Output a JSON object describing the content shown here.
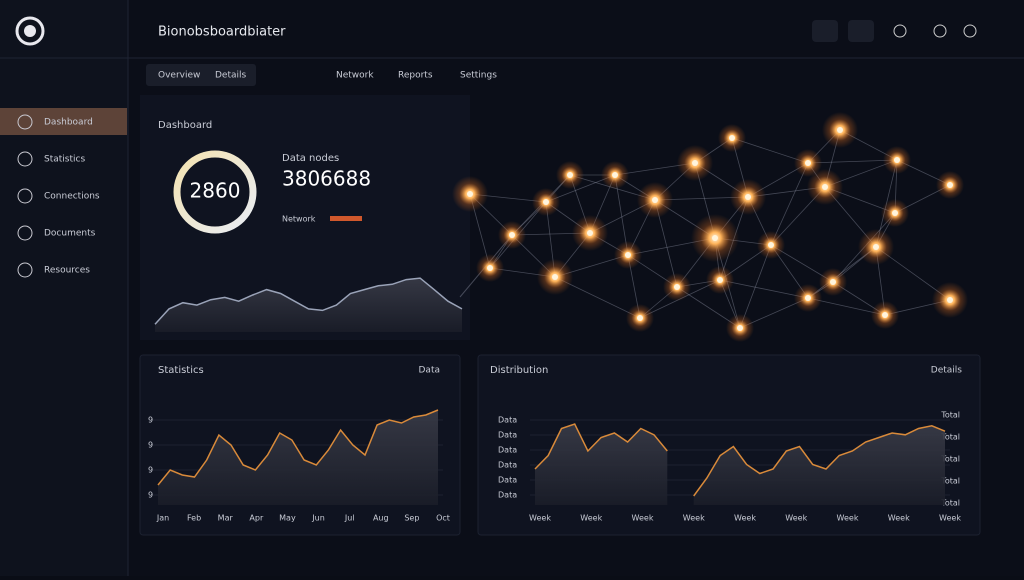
{
  "header": {
    "title": "Bionobsboardbiater"
  },
  "tabs": [
    "Overview",
    "Details",
    "Network",
    "Reports",
    "Settings"
  ],
  "sidebar": [
    "Dashboard",
    "Statistics",
    "Connections",
    "Documents",
    "Resources"
  ],
  "summary": {
    "title": "Dashboard",
    "ring_value": "2860",
    "big_label": "Data nodes",
    "big_number": "3806688",
    "sub_label": "Network",
    "trend": [
      10,
      30,
      38,
      35,
      42,
      45,
      40,
      48,
      55,
      50,
      40,
      30,
      28,
      35,
      50,
      55,
      60,
      62,
      68,
      70,
      55,
      40,
      30
    ]
  },
  "panels": [
    {
      "title": "Statistics",
      "action": "Data",
      "y_labels": [
        "9",
        "9",
        "9",
        "9"
      ],
      "x_labels": [
        "Jan",
        "Feb",
        "Mar",
        "Apr",
        "May",
        "Jun",
        "Jul",
        "Aug",
        "Sep",
        "Oct"
      ],
      "values": [
        20,
        35,
        30,
        28,
        45,
        70,
        60,
        40,
        35,
        50,
        72,
        65,
        45,
        40,
        55,
        75,
        60,
        50,
        80,
        85,
        82,
        88,
        90,
        95
      ]
    },
    {
      "title": "Distribution",
      "action": "Details",
      "y_labels": [
        "Data",
        "Data",
        "Data",
        "Data",
        "Data",
        "Data"
      ],
      "y2_labels": [
        "Total",
        "Total",
        "Total",
        "Total",
        "Total"
      ],
      "x_labels": [
        "Week",
        "Week",
        "Week",
        "Week",
        "Week",
        "Week",
        "Week",
        "Week",
        "Week"
      ],
      "values": [
        40,
        55,
        85,
        90,
        60,
        75,
        80,
        70,
        85,
        78,
        60,
        null,
        10,
        30,
        55,
        65,
        45,
        35,
        40,
        60,
        65,
        45,
        40,
        55,
        60,
        70,
        75,
        80,
        78,
        85,
        88,
        82
      ]
    }
  ]
}
